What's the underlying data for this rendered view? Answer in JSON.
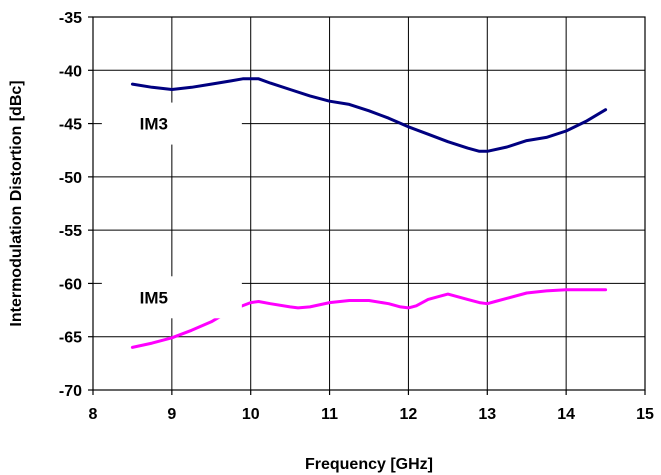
{
  "chart_data": {
    "type": "line",
    "title": "",
    "xlabel": "Frequency [GHz]",
    "ylabel": "Intermodulation Distortion [dBc]",
    "xlim": [
      8,
      15
    ],
    "ylim": [
      -70,
      -35
    ],
    "x_ticks": [
      "8",
      "9",
      "10",
      "11",
      "12",
      "13",
      "14",
      "15"
    ],
    "y_ticks": [
      "-35",
      "-40",
      "-45",
      "-50",
      "-55",
      "-60",
      "-65",
      "-70"
    ],
    "grid": true,
    "legend": "none",
    "series": [
      {
        "name": "IM3",
        "color": "#000080",
        "label_at": [
          9.0,
          -45
        ],
        "x": [
          8.5,
          8.75,
          9.0,
          9.25,
          9.5,
          9.75,
          9.9,
          10.0,
          10.1,
          10.25,
          10.5,
          10.75,
          11.0,
          11.25,
          11.5,
          11.75,
          12.0,
          12.25,
          12.5,
          12.75,
          12.9,
          13.0,
          13.25,
          13.5,
          13.75,
          14.0,
          14.25,
          14.5
        ],
        "y": [
          -41.3,
          -41.6,
          -41.8,
          -41.6,
          -41.3,
          -41.0,
          -40.8,
          -40.8,
          -40.8,
          -41.2,
          -41.8,
          -42.4,
          -42.9,
          -43.2,
          -43.8,
          -44.5,
          -45.3,
          -46.0,
          -46.7,
          -47.3,
          -47.6,
          -47.6,
          -47.2,
          -46.6,
          -46.3,
          -45.7,
          -44.8,
          -43.7
        ]
      },
      {
        "name": "IM5",
        "color": "#ff00ff",
        "label_at": [
          9.0,
          -61.3
        ],
        "x": [
          8.5,
          8.75,
          9.0,
          9.25,
          9.5,
          9.75,
          10.0,
          10.1,
          10.25,
          10.5,
          10.6,
          10.75,
          11.0,
          11.25,
          11.5,
          11.75,
          11.9,
          12.0,
          12.1,
          12.25,
          12.4,
          12.5,
          12.6,
          12.75,
          12.9,
          13.0,
          13.1,
          13.25,
          13.5,
          13.75,
          14.0,
          14.25,
          14.5
        ],
        "y": [
          -66.0,
          -65.6,
          -65.1,
          -64.4,
          -63.6,
          -62.5,
          -61.8,
          -61.7,
          -61.9,
          -62.2,
          -62.3,
          -62.2,
          -61.8,
          -61.6,
          -61.6,
          -61.9,
          -62.2,
          -62.3,
          -62.1,
          -61.5,
          -61.2,
          -61.0,
          -61.2,
          -61.5,
          -61.8,
          -61.9,
          -61.7,
          -61.4,
          -60.9,
          -60.7,
          -60.6,
          -60.6,
          -60.6
        ]
      }
    ]
  }
}
